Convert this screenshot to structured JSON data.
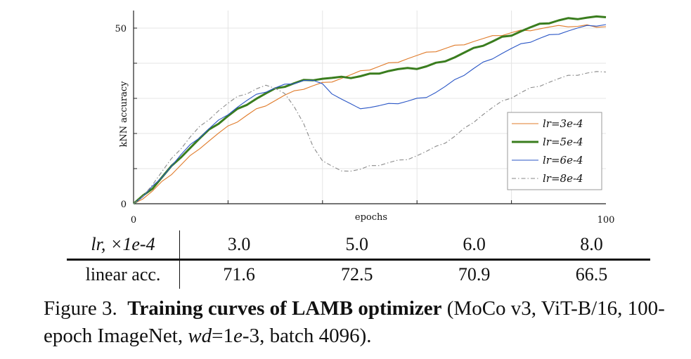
{
  "chart_data": {
    "type": "line",
    "title": "",
    "xlabel": "epochs",
    "ylabel": "kNN accuracy",
    "xlim": [
      0,
      100
    ],
    "ylim": [
      0,
      55
    ],
    "x_ticks": [
      0,
      100
    ],
    "y_ticks": [
      0,
      50
    ],
    "grid": true,
    "legend_position": "lower-right",
    "series": [
      {
        "name": "lr=3e-4",
        "color": "#e07b2a",
        "x": [
          0,
          2,
          4,
          6,
          8,
          10,
          12,
          14,
          16,
          18,
          20,
          22,
          24,
          26,
          28,
          30,
          32,
          34,
          36,
          38,
          40,
          42,
          44,
          46,
          48,
          50,
          52,
          54,
          56,
          58,
          60,
          62,
          64,
          66,
          68,
          70,
          72,
          74,
          76,
          78,
          80,
          82,
          84,
          86,
          88,
          90,
          92,
          94,
          96,
          98,
          100
        ],
        "y": [
          0,
          1.5,
          3.5,
          6,
          8.5,
          11,
          13.5,
          16,
          18,
          20,
          21.8,
          23.5,
          25.2,
          26.8,
          28.2,
          29.5,
          30.8,
          31.8,
          32.8,
          33.6,
          34.3,
          35,
          35.8,
          36.6,
          37.5,
          38.3,
          39.1,
          39.9,
          40.6,
          41.4,
          42.1,
          42.8,
          43.5,
          44.2,
          44.9,
          45.6,
          46.3,
          46.9,
          47.5,
          48.1,
          48.7,
          49.2,
          49.6,
          49.9,
          50.2,
          50.4,
          50.6,
          50.5,
          50.7,
          50.6,
          50.4
        ]
      },
      {
        "name": "lr=5e-4",
        "color": "#3a7d1e",
        "x": [
          0,
          2,
          4,
          6,
          8,
          10,
          12,
          14,
          16,
          18,
          20,
          22,
          24,
          26,
          28,
          30,
          32,
          34,
          36,
          38,
          40,
          42,
          44,
          46,
          48,
          50,
          52,
          54,
          56,
          58,
          60,
          62,
          64,
          66,
          68,
          70,
          72,
          74,
          76,
          78,
          80,
          82,
          84,
          86,
          88,
          90,
          92,
          94,
          96,
          98,
          100
        ],
        "y": [
          0,
          2,
          4.5,
          7.5,
          10.5,
          13.5,
          16,
          18.5,
          20.8,
          23,
          25,
          26.8,
          28.5,
          30,
          31.3,
          32.5,
          33.5,
          34.3,
          35,
          35.5,
          35.7,
          35.7,
          35.8,
          36,
          36.3,
          36.8,
          37.4,
          37.9,
          38.2,
          38.3,
          38.6,
          39.1,
          39.9,
          40.9,
          41.8,
          42.9,
          44,
          45.2,
          46.2,
          47.3,
          48.2,
          49.2,
          50.1,
          50.9,
          51.6,
          52.2,
          52.6,
          52.9,
          53.1,
          53.2,
          53.1
        ]
      },
      {
        "name": "lr=6e-4",
        "color": "#2a56c6",
        "x": [
          0,
          2,
          4,
          6,
          8,
          10,
          12,
          14,
          16,
          18,
          20,
          22,
          24,
          26,
          28,
          30,
          32,
          34,
          36,
          38,
          40,
          42,
          44,
          46,
          48,
          50,
          52,
          54,
          56,
          58,
          60,
          62,
          64,
          66,
          68,
          70,
          72,
          74,
          76,
          78,
          80,
          82,
          84,
          86,
          88,
          90,
          92,
          94,
          96,
          98,
          100
        ],
        "y": [
          0,
          2,
          4.8,
          7.8,
          10.8,
          13.8,
          16.5,
          19,
          21.4,
          23.6,
          25.7,
          27.6,
          29.3,
          30.8,
          32,
          33,
          33.8,
          34.5,
          35.2,
          35,
          33.8,
          31.5,
          29.8,
          28.2,
          27.4,
          27.5,
          27.8,
          28.2,
          28.7,
          29.2,
          29.8,
          30.6,
          31.8,
          33.3,
          35,
          36.8,
          38.5,
          40.1,
          41.6,
          42.9,
          44.1,
          45.2,
          46.2,
          47.1,
          47.9,
          48.6,
          49.3,
          49.9,
          50.4,
          50.8,
          51
        ]
      },
      {
        "name": "lr=8e-4",
        "color": "#8a8a8a",
        "x": [
          0,
          2,
          4,
          6,
          8,
          10,
          12,
          14,
          16,
          18,
          20,
          22,
          24,
          26,
          28,
          30,
          32,
          34,
          36,
          38,
          40,
          42,
          44,
          46,
          48,
          50,
          52,
          54,
          56,
          58,
          60,
          62,
          64,
          66,
          68,
          70,
          72,
          74,
          76,
          78,
          80,
          82,
          84,
          86,
          88,
          90,
          92,
          94,
          96,
          98,
          100
        ],
        "y": [
          0,
          2.5,
          5.5,
          9,
          12.5,
          15.8,
          19,
          21.8,
          24.3,
          26.6,
          28.5,
          30.2,
          31.5,
          32.7,
          33.5,
          33.2,
          31.5,
          27.5,
          22.5,
          16.5,
          12.2,
          10.5,
          9.7,
          9.4,
          9.7,
          10.5,
          11.1,
          11.7,
          12.2,
          12.9,
          13.8,
          14.8,
          16,
          17.5,
          19.2,
          21.3,
          23.5,
          25.5,
          27.3,
          28.9,
          30.3,
          31.6,
          32.8,
          33.8,
          34.7,
          35.5,
          36.2,
          36.8,
          37.2,
          37.4,
          37.5
        ]
      }
    ]
  },
  "legend": {
    "items": [
      {
        "label": "lr=3e-4"
      },
      {
        "label": "lr=5e-4"
      },
      {
        "label": "lr=6e-4"
      },
      {
        "label": "lr=8e-4"
      }
    ]
  },
  "table": {
    "row1_header": "lr, ×1e-4",
    "row1_values": [
      "3.0",
      "5.0",
      "6.0",
      "8.0"
    ],
    "row2_header": "linear acc.",
    "row2_values": [
      "71.6",
      "72.5",
      "70.9",
      "66.5"
    ]
  },
  "caption": {
    "label": "Figure 3.",
    "bold_title": "Training curves of LAMB optimizer",
    "part1": " (MoCo v3, ViT-B/16, 100-epoch ImageNet, ",
    "math_wd": "wd",
    "part2": "=1",
    "math_e": "e",
    "part3": "-3, batch 4096)."
  }
}
